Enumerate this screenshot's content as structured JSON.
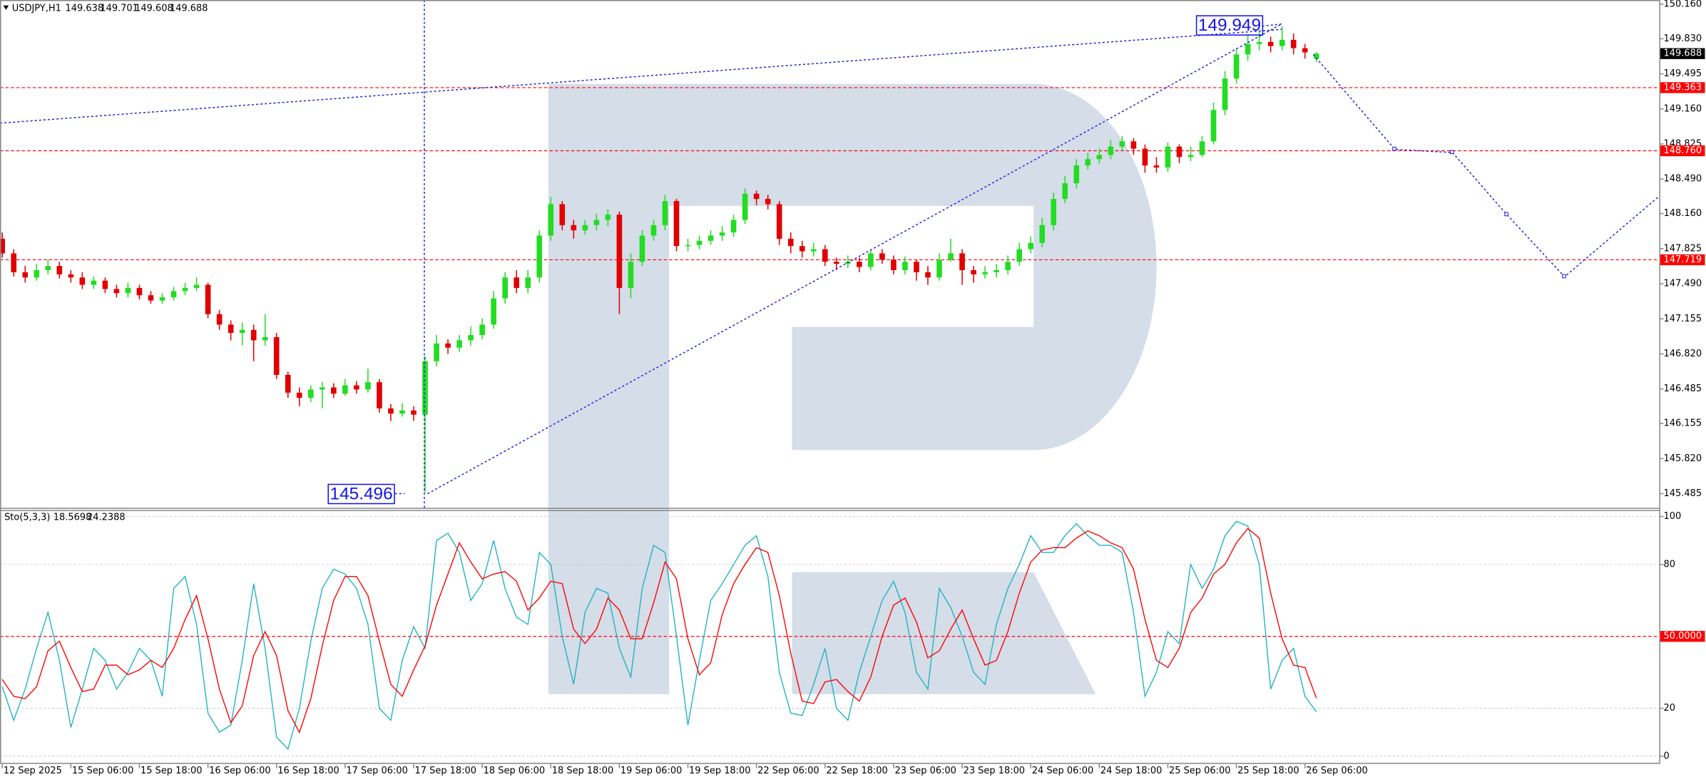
{
  "chart_data": [
    {
      "type": "candlestick",
      "symbol": "USDJPY,H1",
      "up_color": "#22dd22",
      "down_color": "#e00000",
      "open": [
        147.92,
        147.78,
        147.6,
        147.55,
        147.62,
        147.66,
        147.58,
        147.55,
        147.48,
        147.52,
        147.44,
        147.4,
        147.45,
        147.38,
        147.33,
        147.36,
        147.42,
        147.45,
        147.48,
        147.2,
        147.1,
        147.02,
        147.05,
        146.95,
        146.98,
        146.62,
        146.45,
        146.4,
        146.48,
        146.5,
        146.44,
        146.52,
        146.48,
        146.55,
        146.3,
        146.25,
        146.28,
        146.24,
        146.75,
        146.92,
        146.88,
        146.95,
        147,
        147.1,
        147.35,
        147.55,
        147.45,
        147.55,
        147.95,
        148.25,
        148.05,
        148,
        148.05,
        148.1,
        148.15,
        147.45,
        147.7,
        147.95,
        148.05,
        148.28,
        147.85,
        147.86,
        147.9,
        147.95,
        147.98,
        148.1,
        148.35,
        148.3,
        148.25,
        147.92,
        147.85,
        147.8,
        147.82,
        147.7,
        147.68,
        147.7,
        147.65,
        147.78,
        147.72,
        147.62,
        147.7,
        147.6,
        147.55,
        147.72,
        147.78,
        147.62,
        147.58,
        147.6,
        147.62,
        147.7,
        147.82,
        147.88,
        148.05,
        148.3,
        148.45,
        148.62,
        148.68,
        148.72,
        148.8,
        148.85,
        148.78,
        148.62,
        148.6,
        148.8,
        148.7,
        148.72,
        148.85,
        149.15,
        149.45,
        149.68,
        149.78,
        149.8,
        149.76,
        149.82,
        149.74,
        149.638
      ],
      "high": [
        147.98,
        147.82,
        147.66,
        147.68,
        147.72,
        147.7,
        147.62,
        147.6,
        147.56,
        147.55,
        147.48,
        147.5,
        147.48,
        147.42,
        147.4,
        147.46,
        147.5,
        147.55,
        147.5,
        147.24,
        147.14,
        147.12,
        147.1,
        147.2,
        147.02,
        146.65,
        146.5,
        146.52,
        146.55,
        146.54,
        146.58,
        146.56,
        146.68,
        146.58,
        146.34,
        146.35,
        146.32,
        146.8,
        147,
        146.96,
        147,
        147.08,
        147.16,
        147.42,
        147.6,
        147.62,
        147.62,
        148,
        148.32,
        148.28,
        148.1,
        148.1,
        148.16,
        148.2,
        148.18,
        147.78,
        148,
        148.1,
        148.34,
        148.3,
        147.92,
        147.95,
        148,
        148.04,
        148.15,
        148.4,
        148.38,
        148.34,
        148.28,
        147.98,
        147.9,
        147.88,
        147.86,
        147.74,
        147.76,
        147.74,
        147.82,
        147.82,
        147.76,
        147.75,
        147.72,
        147.66,
        147.78,
        147.92,
        147.82,
        147.66,
        147.66,
        147.68,
        147.76,
        147.88,
        147.94,
        148.12,
        148.36,
        148.52,
        148.68,
        148.74,
        148.78,
        148.86,
        148.9,
        148.88,
        148.82,
        148.7,
        148.84,
        148.82,
        148.8,
        148.9,
        149.22,
        149.52,
        149.74,
        149.86,
        149.9,
        149.85,
        149.949,
        149.88,
        149.78,
        149.701
      ],
      "low": [
        147.74,
        147.56,
        147.5,
        147.52,
        147.58,
        147.54,
        147.5,
        147.44,
        147.44,
        147.4,
        147.36,
        147.36,
        147.34,
        147.3,
        147.3,
        147.33,
        147.38,
        147.42,
        147.16,
        147.05,
        146.95,
        146.9,
        146.75,
        146.9,
        146.58,
        146.4,
        146.32,
        146.36,
        146.3,
        146.4,
        146.42,
        146.44,
        146.45,
        146.26,
        146.18,
        146.22,
        146.18,
        145.496,
        146.7,
        146.82,
        146.84,
        146.9,
        146.96,
        147.06,
        147.3,
        147.4,
        147.4,
        147.5,
        147.9,
        148,
        147.92,
        147.96,
        148,
        148.04,
        147.2,
        147.35,
        147.66,
        147.9,
        148,
        147.8,
        147.8,
        147.82,
        147.86,
        147.9,
        147.94,
        148.06,
        148.24,
        148.2,
        147.86,
        147.78,
        147.74,
        147.75,
        147.66,
        147.62,
        147.64,
        147.6,
        147.62,
        147.68,
        147.58,
        147.58,
        147.52,
        147.48,
        147.52,
        147.7,
        147.48,
        147.5,
        147.54,
        147.55,
        147.58,
        147.66,
        147.78,
        147.84,
        148,
        148.26,
        148.4,
        148.58,
        148.64,
        148.68,
        148.76,
        148.72,
        148.55,
        148.55,
        148.56,
        148.64,
        148.66,
        148.7,
        148.82,
        149.1,
        149.4,
        149.62,
        149.72,
        149.7,
        149.72,
        149.68,
        149.64,
        149.608
      ],
      "close": [
        147.78,
        147.6,
        147.55,
        147.62,
        147.66,
        147.58,
        147.55,
        147.48,
        147.52,
        147.44,
        147.4,
        147.45,
        147.38,
        147.33,
        147.36,
        147.42,
        147.45,
        147.48,
        147.2,
        147.1,
        147.02,
        147.05,
        146.95,
        146.98,
        146.62,
        146.45,
        146.4,
        146.48,
        146.5,
        146.44,
        146.52,
        146.48,
        146.55,
        146.3,
        146.25,
        146.28,
        146.24,
        146.75,
        146.92,
        146.88,
        146.95,
        147,
        147.1,
        147.35,
        147.55,
        147.45,
        147.55,
        147.95,
        148.25,
        148.05,
        148,
        148.05,
        148.1,
        148.15,
        147.45,
        147.7,
        147.95,
        148.05,
        148.28,
        147.85,
        147.86,
        147.9,
        147.95,
        147.98,
        148.1,
        148.35,
        148.3,
        148.25,
        147.92,
        147.85,
        147.8,
        147.82,
        147.7,
        147.68,
        147.7,
        147.65,
        147.78,
        147.72,
        147.62,
        147.7,
        147.6,
        147.55,
        147.72,
        147.78,
        147.62,
        147.58,
        147.6,
        147.62,
        147.7,
        147.82,
        147.88,
        148.05,
        148.3,
        148.45,
        148.62,
        148.68,
        148.72,
        148.8,
        148.85,
        148.78,
        148.62,
        148.6,
        148.8,
        148.7,
        148.72,
        148.85,
        149.15,
        149.45,
        149.68,
        149.78,
        149.8,
        149.76,
        149.82,
        149.74,
        149.7,
        149.688
      ],
      "xlim": [
        -0.2,
        145
      ],
      "ylim": [
        145.35,
        150.2
      ],
      "yticks": [
        {
          "value": 150.16,
          "label": "150.160"
        },
        {
          "value": 149.83,
          "label": "149.830"
        },
        149.495,
        {
          "value": 149.16,
          "label": "149.160"
        },
        148.825,
        {
          "value": 148.49,
          "label": "148.490"
        },
        {
          "value": 148.16,
          "label": "148.160"
        },
        147.825,
        {
          "value": 147.49,
          "label": "147.490"
        },
        147.155,
        {
          "value": 146.82,
          "label": "146.820"
        },
        146.485,
        146.155,
        {
          "value": 145.82,
          "label": "145.820"
        },
        145.485
      ],
      "grid": false,
      "level_color": "#ff0000",
      "levels": [
        149.363,
        {
          "value": 148.76,
          "label": "148.760"
        },
        147.719
      ]
    },
    {
      "type": "line",
      "title": "Sto(5,3,3)",
      "series": [
        {
          "color": "#20b2c0",
          "values": [
            29,
            15,
            28,
            45,
            60,
            40,
            12,
            28,
            45,
            40,
            28,
            35,
            45,
            40,
            25,
            70,
            75,
            55,
            18,
            10,
            13,
            40,
            72,
            45,
            8,
            3,
            20,
            48,
            70,
            78,
            76,
            70,
            55,
            20,
            15,
            40,
            54,
            45,
            90,
            93,
            85,
            65,
            72,
            90,
            70,
            58,
            55,
            85,
            80,
            50,
            30,
            60,
            70,
            68,
            45,
            33,
            70,
            88,
            85,
            50,
            13,
            40,
            65,
            72,
            80,
            88,
            92,
            75,
            35,
            18,
            17,
            30,
            45,
            20,
            15,
            35,
            50,
            65,
            73,
            60,
            35,
            28,
            70,
            62,
            50,
            35,
            30,
            55,
            70,
            80,
            92,
            85,
            85,
            92,
            97,
            92,
            88,
            88,
            85,
            60,
            25,
            35,
            52,
            47,
            80,
            70,
            78,
            92,
            98,
            96,
            80,
            28,
            40,
            45,
            25,
            18.5698
          ]
        },
        {
          "color": "#ff0000",
          "values": [
            32,
            25,
            24,
            29,
            44,
            48,
            37,
            27,
            28,
            38,
            38,
            34,
            36,
            40,
            37,
            45,
            57,
            67,
            49,
            28,
            14,
            21,
            42,
            52,
            42,
            19,
            10,
            24,
            46,
            65,
            75,
            75,
            67,
            48,
            30,
            25,
            36,
            46,
            63,
            76,
            89,
            81,
            74,
            76,
            77,
            73,
            61,
            66,
            73,
            72,
            53,
            47,
            53,
            66,
            61,
            49,
            49,
            64,
            81,
            74,
            49,
            34,
            39,
            59,
            72,
            80,
            87,
            85,
            67,
            43,
            23,
            22,
            31,
            32,
            27,
            23,
            33,
            50,
            63,
            66,
            56,
            41,
            44,
            53,
            61,
            49,
            38,
            40,
            52,
            68,
            81,
            86,
            87,
            87,
            91,
            94,
            92,
            89,
            87,
            78,
            57,
            40,
            37,
            45,
            60,
            66,
            76,
            80,
            89,
            95,
            91,
            68,
            49,
            38,
            37,
            24.2388
          ]
        }
      ],
      "xlim": [
        -0.2,
        145
      ],
      "ylim": [
        -3.2,
        102.7
      ],
      "yticks": [
        0,
        20,
        80,
        100
      ],
      "grid": true,
      "level_color": "#ff0000",
      "levels": [
        {
          "value": 50,
          "label": "50.0000"
        }
      ],
      "xticks": [
        {
          "value": 0,
          "label": "12 Sep 2025"
        },
        {
          "value": 6,
          "label": "15 Sep 06:00"
        },
        {
          "value": 12,
          "label": "15 Sep 18:00"
        },
        {
          "value": 18,
          "label": "16 Sep 06:00"
        },
        {
          "value": 24,
          "label": "16 Sep 18:00"
        },
        {
          "value": 30,
          "label": "17 Sep 06:00"
        },
        {
          "value": 36,
          "label": "17 Sep 18:00"
        },
        {
          "value": 42,
          "label": "18 Sep 06:00"
        },
        {
          "value": 48,
          "label": "18 Sep 18:00"
        },
        {
          "value": 54,
          "label": "19 Sep 06:00"
        },
        {
          "value": 60,
          "label": "19 Sep 18:00"
        },
        {
          "value": 66,
          "label": "22 Sep 06:00"
        },
        {
          "value": 72,
          "label": "22 Sep 18:00"
        },
        {
          "value": 78,
          "label": "23 Sep 06:00"
        },
        {
          "value": 84,
          "label": "23 Sep 18:00"
        },
        {
          "value": 90,
          "label": "24 Sep 06:00"
        },
        {
          "value": 96,
          "label": "24 Sep 18:00"
        },
        {
          "value": 102,
          "label": "25 Sep 06:00"
        },
        {
          "value": 108,
          "label": "25 Sep 18:00"
        },
        {
          "value": 114,
          "label": "26 Sep 06:00"
        }
      ]
    }
  ]
}
